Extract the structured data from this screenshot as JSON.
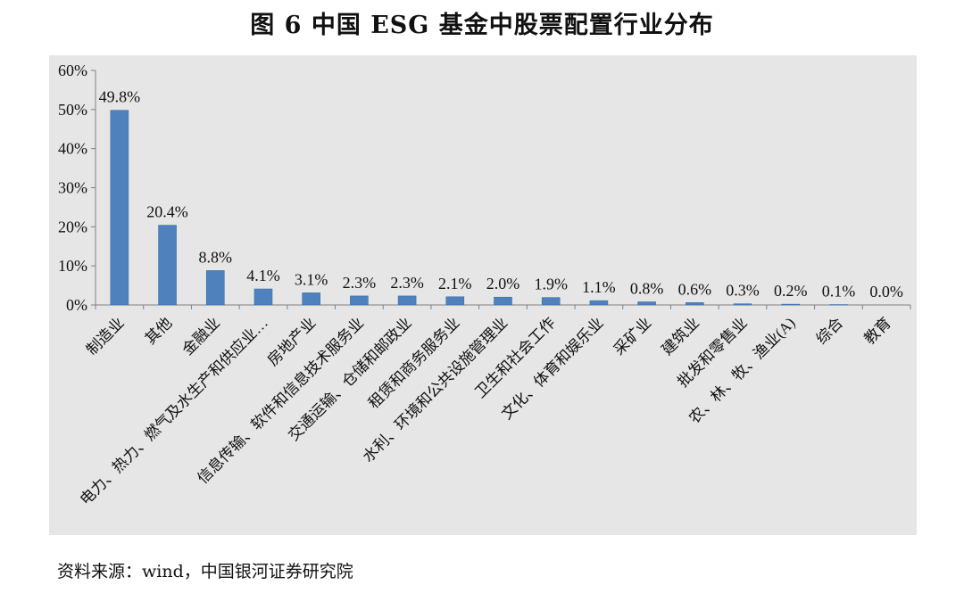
{
  "chart_data": {
    "type": "bar",
    "title": "图 6  中国 ESG 基金中股票配置行业分布",
    "xlabel": "",
    "ylabel": "",
    "ylim": [
      0,
      60
    ],
    "ytick_labels": [
      "0%",
      "10%",
      "20%",
      "30%",
      "40%",
      "50%",
      "60%"
    ],
    "grid": false,
    "bar_color": "#4F81BD",
    "plot_background": "#E6E6E6",
    "categories": [
      "制造业",
      "其他",
      "金融业",
      "电力、热力、燃气及水生产和供应业…",
      "房地产业",
      "信息传输、软件和信息技术服务业",
      "交通运输、仓储和邮政业",
      "租赁和商务服务业",
      "水利、环境和公共设施管理业",
      "卫生和社会工作",
      "文化、体育和娱乐业",
      "采矿业",
      "建筑业",
      "批发和零售业",
      "农、林、牧、渔业(A)",
      "综合",
      "教育"
    ],
    "values": [
      49.8,
      20.4,
      8.8,
      4.1,
      3.1,
      2.3,
      2.3,
      2.1,
      2.0,
      1.9,
      1.1,
      0.8,
      0.6,
      0.3,
      0.2,
      0.1,
      0.0
    ],
    "data_labels": [
      "49.8%",
      "20.4%",
      "8.8%",
      "4.1%",
      "3.1%",
      "2.3%",
      "2.3%",
      "2.1%",
      "2.0%",
      "1.9%",
      "1.1%",
      "0.8%",
      "0.6%",
      "0.3%",
      "0.2%",
      "0.1%",
      "0.0%"
    ]
  },
  "source_note": "资料来源：wind，中国银河证券研究院"
}
